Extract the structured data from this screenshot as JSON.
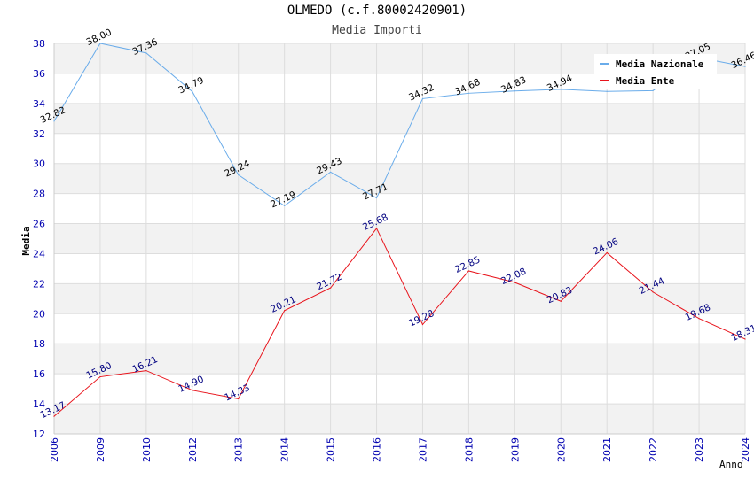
{
  "chart_data": {
    "type": "line",
    "title": "OLMEDO (c.f.80002420901)",
    "subtitle": "Media Importi",
    "xlabel": "Anno",
    "ylabel": "Media",
    "categories": [
      "2006",
      "2009",
      "2010",
      "2012",
      "2013",
      "2014",
      "2015",
      "2016",
      "2017",
      "2018",
      "2019",
      "2020",
      "2021",
      "2022",
      "2023",
      "2024"
    ],
    "ylim": [
      12,
      38
    ],
    "yticks": [
      12,
      14,
      16,
      18,
      20,
      22,
      24,
      26,
      28,
      30,
      32,
      34,
      36,
      38
    ],
    "series": [
      {
        "name": "Media Nazionale",
        "color": "#6aacea",
        "values": [
          32.82,
          38.0,
          37.36,
          34.79,
          29.24,
          27.19,
          29.43,
          27.71,
          34.32,
          34.68,
          34.83,
          34.94,
          34.8,
          34.85,
          37.05,
          36.46
        ],
        "labels": [
          "32.82",
          "38.00",
          "37.36",
          "34.79",
          "29.24",
          "27.19",
          "29.43",
          "27.71",
          "34.32",
          "34.68",
          "34.83",
          "34.94",
          "",
          "",
          "37.05",
          "36.46"
        ]
      },
      {
        "name": "Media Ente",
        "color": "#e8141c",
        "values": [
          13.17,
          15.8,
          16.21,
          14.9,
          14.33,
          20.21,
          21.72,
          25.68,
          19.28,
          22.85,
          22.08,
          20.83,
          24.06,
          21.44,
          19.68,
          18.31
        ],
        "labels": [
          "13.17",
          "15.80",
          "16.21",
          "14.90",
          "14.33",
          "20.21",
          "21.72",
          "25.68",
          "19.28",
          "22.85",
          "22.08",
          "20.83",
          "24.06",
          "21.44",
          "19.68",
          "18.31"
        ]
      }
    ],
    "legend_position": "top-right"
  }
}
